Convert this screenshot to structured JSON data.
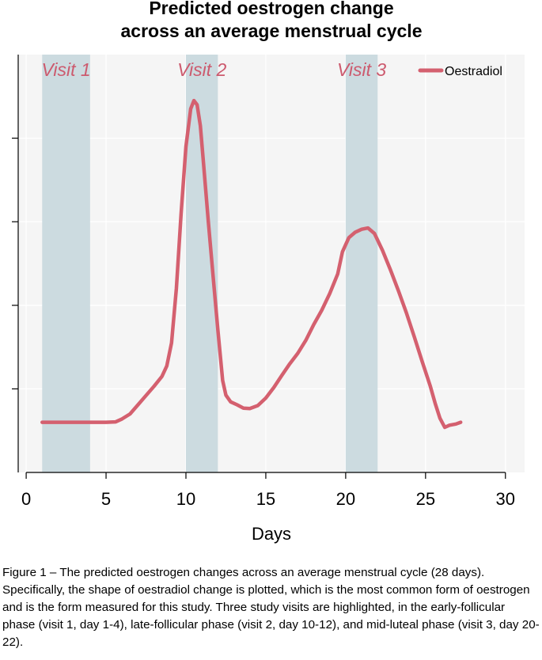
{
  "chart_data": {
    "type": "line",
    "title": "Predicted oestrogen change",
    "subtitle": "across an average menstrual cycle",
    "xlabel": "Days",
    "ylabel": "",
    "xlim": [
      -0.5,
      31.2
    ],
    "ylim": [
      0,
      100
    ],
    "xticks": [
      0,
      5,
      10,
      15,
      20,
      25,
      30
    ],
    "y_gridlines": [
      20,
      40,
      60,
      80
    ],
    "grid": true,
    "legend": {
      "position": "top-right",
      "entries": [
        "Oestradiol"
      ]
    },
    "shaded_regions": [
      {
        "label": "Visit 1",
        "start": 1,
        "end": 4
      },
      {
        "label": "Visit 2",
        "start": 10,
        "end": 12
      },
      {
        "label": "Visit 3",
        "start": 20,
        "end": 22
      }
    ],
    "series": [
      {
        "name": "Oestradiol",
        "x": [
          1,
          2,
          3,
          4,
          5,
          5.6,
          6,
          6.5,
          7,
          7.5,
          8,
          8.5,
          8.8,
          9.1,
          9.4,
          9.7,
          10,
          10.3,
          10.5,
          10.7,
          10.9,
          11.1,
          11.4,
          11.7,
          12,
          12.3,
          12.5,
          12.8,
          13.2,
          13.6,
          14,
          14.5,
          15,
          15.5,
          16,
          16.5,
          17,
          17.5,
          18,
          18.5,
          19,
          19.5,
          19.8,
          20.2,
          20.6,
          21,
          21.4,
          21.8,
          22.3,
          22.8,
          23.3,
          23.8,
          24.3,
          24.8,
          25.3,
          25.6,
          25.9,
          26.2,
          26.5,
          26.9,
          27.2
        ],
        "values": [
          12.0,
          12.0,
          12.0,
          12.0,
          12.0,
          12.1,
          12.8,
          14.0,
          16.2,
          18.4,
          20.6,
          23.0,
          25.5,
          31.0,
          44.0,
          62.0,
          78.0,
          87.0,
          89.0,
          88.0,
          83.0,
          74.0,
          60.0,
          47.0,
          34.0,
          22.0,
          18.5,
          16.9,
          16.2,
          15.4,
          15.3,
          16.0,
          17.8,
          20.3,
          23.2,
          26.0,
          28.5,
          31.6,
          35.4,
          38.8,
          42.8,
          47.5,
          52.8,
          56.2,
          57.5,
          58.2,
          58.5,
          57.2,
          53.2,
          48.5,
          43.5,
          38.2,
          32.4,
          26.4,
          20.6,
          16.6,
          13.0,
          10.8,
          11.3,
          11.6,
          12.0
        ]
      }
    ]
  },
  "colors": {
    "series": "#d4606f",
    "shade": "#ccdbe0",
    "plot_background": "#f5f5f5",
    "grid": "#ffffff",
    "visit_label": "#cc5a6e"
  },
  "caption": "Figure 1 – The predicted oestrogen changes across an average menstrual cycle (28 days). Specifically, the shape of oestradiol change is plotted, which is the most common form of oestrogen and is the form measured for this study. Three study visits are highlighted, in the early-follicular phase (visit 1, day 1-4), late-follicular phase (visit 2, day 10-12), and mid-luteal phase (visit 3, day 20-22)."
}
